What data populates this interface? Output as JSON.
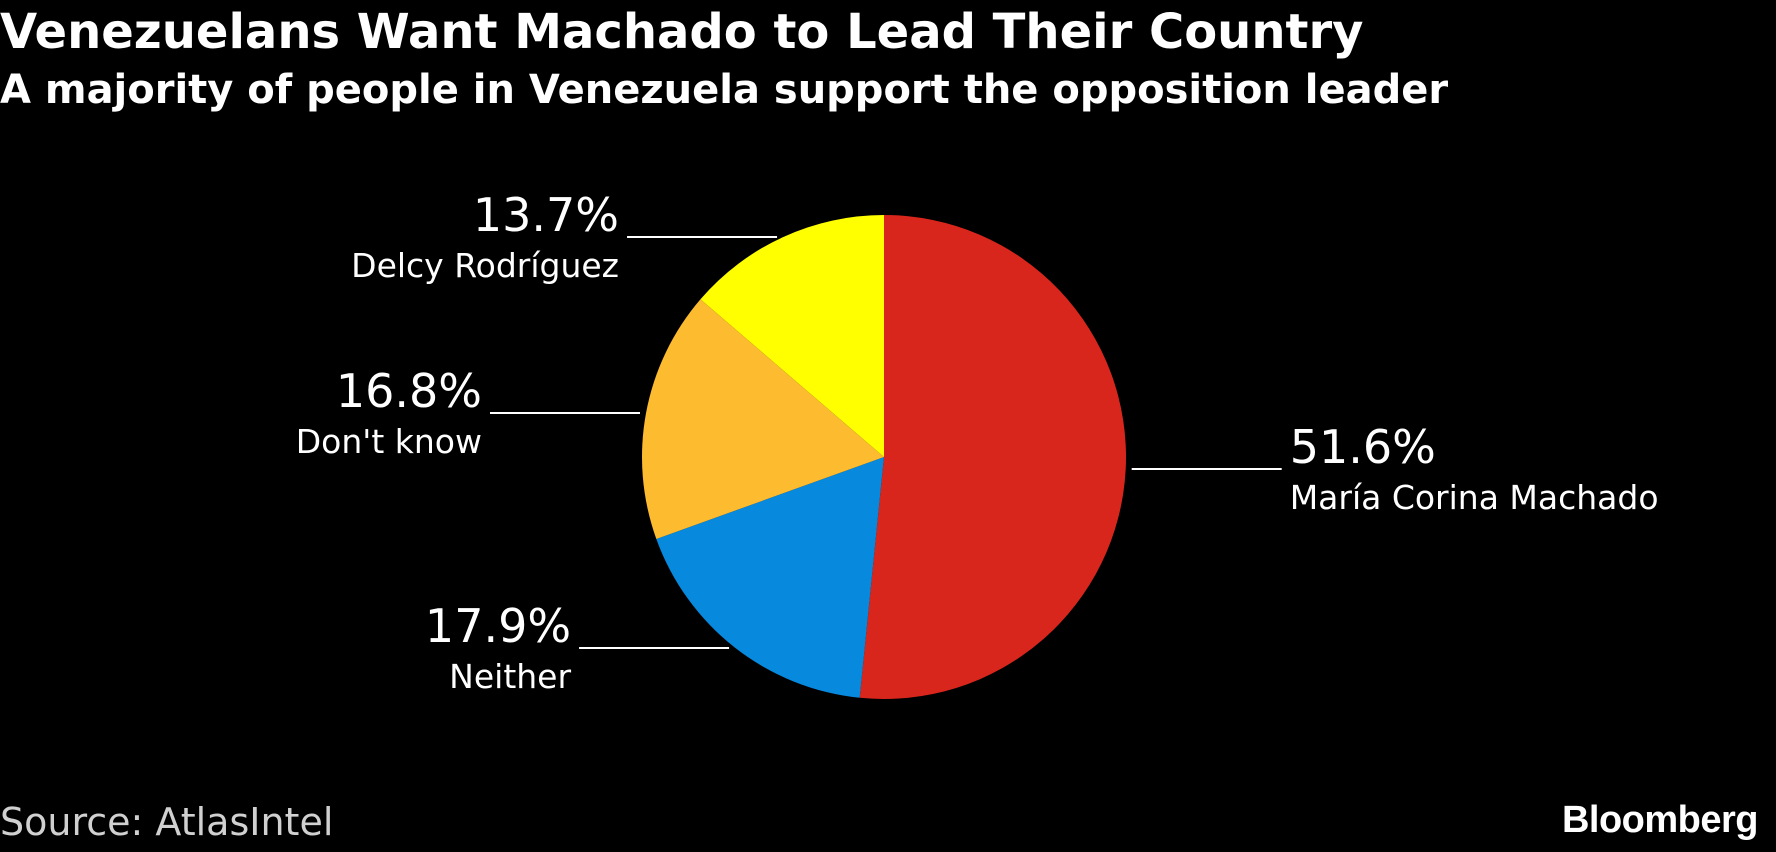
{
  "header": {
    "title": "Venezuelans Want Machado to Lead Their Country",
    "subtitle": "A majority of people in Venezuela support the opposition leader"
  },
  "footer": {
    "source": "Source: AtlasIntel",
    "brand": "Bloomberg"
  },
  "chart_data": {
    "type": "pie",
    "title": "Venezuelans Want Machado to Lead Their Country",
    "subtitle": "A majority of people in Venezuela support the opposition leader",
    "start_angle": "12 o'clock",
    "direction": "clockwise",
    "slices": [
      {
        "label": "María Corina Machado",
        "value": 51.6,
        "value_label": "51.6%",
        "color": "#d9261c"
      },
      {
        "label": "Neither",
        "value": 17.9,
        "value_label": "17.9%",
        "color": "#0789de"
      },
      {
        "label": "Don't know",
        "value": 16.8,
        "value_label": "16.8%",
        "color": "#fdbb30"
      },
      {
        "label": "Delcy Rodríguez",
        "value": 13.7,
        "value_label": "13.7%",
        "color": "#ffff00"
      }
    ]
  }
}
